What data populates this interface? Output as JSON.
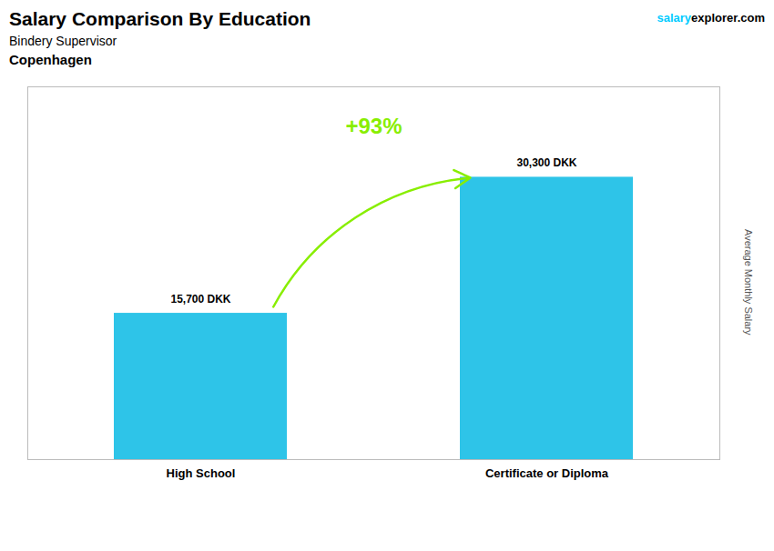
{
  "chart_data": {
    "type": "bar",
    "title": "Salary Comparison By Education",
    "subtitle": "Bindery Supervisor",
    "ylabel": "Average Monthly Salary",
    "categories": [
      "High School",
      "Certificate or Diploma"
    ],
    "values": [
      15700,
      30300
    ],
    "value_labels": [
      "15,700 DKK",
      "30,300 DKK"
    ],
    "color": "#2ec4e8",
    "ylim": [
      0,
      40000
    ],
    "tick_labels": "x",
    "data_labels": true,
    "annotations": [
      {
        "text": "Copenhagen"
      },
      {
        "text": "salary",
        "color": "#00ccff"
      },
      {
        "text": "explorer.com"
      },
      {
        "text": "+93%",
        "color": "#88ee00"
      }
    ]
  }
}
